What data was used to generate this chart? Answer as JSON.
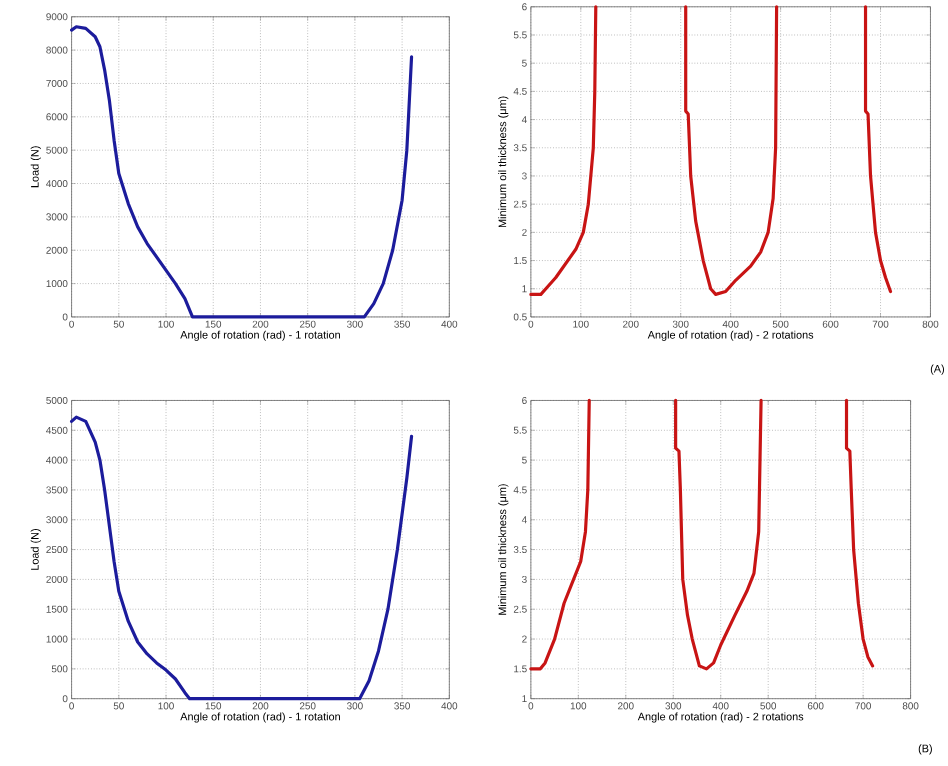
{
  "chart_data": [
    {
      "type": "line",
      "xlabel": "Angle of rotation (rad) - 1 rotation",
      "ylabel": "Load (N)",
      "xlim": [
        0,
        400
      ],
      "ylim": [
        0,
        9000
      ],
      "xticks": [
        0,
        50,
        100,
        150,
        200,
        250,
        300,
        350,
        400
      ],
      "yticks": [
        0,
        1000,
        2000,
        3000,
        4000,
        5000,
        6000,
        7000,
        8000,
        9000
      ],
      "grid": true,
      "line_style": "solid",
      "series": [
        {
          "color": "#1c1c9c",
          "x": [
            0,
            5,
            15,
            25,
            30,
            35,
            40,
            45,
            50,
            60,
            70,
            80,
            90,
            100,
            110,
            120,
            128,
            200,
            310,
            320,
            330,
            340,
            350,
            355,
            360
          ],
          "values": [
            8600,
            8700,
            8650,
            8400,
            8100,
            7400,
            6500,
            5300,
            4300,
            3400,
            2700,
            2200,
            1800,
            1400,
            1000,
            550,
            0,
            0,
            0,
            400,
            1000,
            2000,
            3500,
            5000,
            7800
          ]
        }
      ]
    },
    {
      "type": "line",
      "xlabel": "Angle of rotation (rad) - 2 rotations",
      "ylabel": "Minimum oil thickness (μm)",
      "xlim": [
        0,
        800
      ],
      "ylim": [
        0.5,
        6
      ],
      "xticks": [
        0,
        100,
        200,
        300,
        400,
        500,
        600,
        700,
        800
      ],
      "yticks": [
        0.5,
        1,
        1.5,
        2,
        2.5,
        3,
        3.5,
        4,
        4.5,
        5,
        5.5,
        6
      ],
      "grid": true,
      "line_style": "solid",
      "annotations": [
        "(A)"
      ],
      "series": [
        {
          "color": "#c81414",
          "x": [
            0,
            20,
            30,
            50,
            70,
            90,
            105,
            115,
            120,
            125,
            128,
            130,
            200,
            310,
            310,
            315,
            320,
            330,
            345,
            360,
            370,
            390,
            410,
            440,
            460,
            475,
            485,
            490,
            492,
            600,
            670,
            670,
            675,
            680,
            690,
            700,
            710,
            720
          ],
          "values": [
            0.9,
            0.9,
            1.0,
            1.2,
            1.45,
            1.7,
            2.0,
            2.5,
            3.0,
            3.5,
            4.5,
            6,
            null,
            6,
            4.15,
            4.1,
            3.0,
            2.2,
            1.5,
            1.0,
            0.9,
            0.95,
            1.15,
            1.4,
            1.65,
            2.0,
            2.6,
            3.5,
            6,
            null,
            6,
            4.15,
            4.1,
            3.0,
            2.0,
            1.5,
            1.2,
            0.95
          ]
        }
      ]
    },
    {
      "type": "line",
      "xlabel": "Angle of rotation (rad) - 1 rotation",
      "ylabel": "Load (N)",
      "xlim": [
        0,
        400
      ],
      "ylim": [
        0,
        5000
      ],
      "xticks": [
        0,
        50,
        100,
        150,
        200,
        250,
        300,
        350,
        400
      ],
      "yticks": [
        0,
        500,
        1000,
        1500,
        2000,
        2500,
        3000,
        3500,
        4000,
        4500,
        5000
      ],
      "grid": true,
      "line_style": "solid",
      "series": [
        {
          "color": "#1c1c9c",
          "x": [
            0,
            5,
            15,
            25,
            30,
            35,
            40,
            45,
            50,
            60,
            70,
            80,
            90,
            100,
            110,
            120,
            125,
            200,
            305,
            315,
            325,
            335,
            345,
            355,
            360
          ],
          "values": [
            4650,
            4720,
            4650,
            4300,
            4000,
            3500,
            2900,
            2300,
            1800,
            1300,
            950,
            750,
            600,
            480,
            330,
            100,
            0,
            0,
            0,
            300,
            800,
            1500,
            2500,
            3700,
            4400
          ]
        }
      ]
    },
    {
      "type": "line",
      "xlabel": "Angle of rotation (rad) - 2 rotations",
      "ylabel": "Minimum oil thickness (μm)",
      "xlim": [
        0,
        800
      ],
      "ylim": [
        1,
        6
      ],
      "xticks": [
        0,
        100,
        200,
        300,
        400,
        500,
        600,
        700,
        800
      ],
      "yticks": [
        1,
        1.5,
        2,
        2.5,
        3,
        3.5,
        4,
        4.5,
        5,
        5.5,
        6
      ],
      "grid": true,
      "line_style": "solid",
      "annotations": [
        "(B)"
      ],
      "series": [
        {
          "color": "#c81414",
          "x": [
            0,
            20,
            30,
            50,
            70,
            90,
            105,
            115,
            120,
            123,
            200,
            305,
            305,
            312,
            315,
            320,
            330,
            340,
            355,
            370,
            385,
            400,
            430,
            455,
            470,
            480,
            485,
            600,
            665,
            665,
            672,
            675,
            680,
            690,
            700,
            710,
            720
          ],
          "values": [
            1.5,
            1.5,
            1.6,
            2.0,
            2.6,
            3.0,
            3.3,
            3.8,
            4.5,
            6,
            null,
            6,
            5.2,
            5.15,
            4.5,
            3.0,
            2.4,
            2.0,
            1.55,
            1.5,
            1.6,
            1.9,
            2.4,
            2.8,
            3.1,
            3.8,
            6,
            null,
            6,
            5.2,
            5.15,
            4.5,
            3.5,
            2.6,
            2.0,
            1.7,
            1.55
          ]
        }
      ]
    }
  ]
}
